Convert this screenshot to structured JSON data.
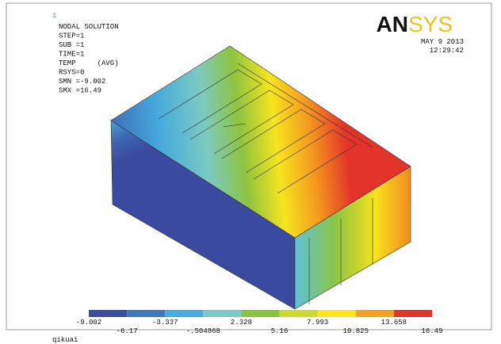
{
  "window_number": "1",
  "info": [
    "NODAL SOLUTION",
    "STEP=1",
    "SUB =1",
    "TIME=1",
    "TEMP     (AVG)",
    "RSYS=0",
    "SMN =-9.002",
    "SMX =16.49"
  ],
  "logo": {
    "left": "AN",
    "right": "SYS"
  },
  "date": "MAY  9 2013",
  "time": "12:29:42",
  "legend": {
    "colors": [
      "#3b4ba0",
      "#3c78be",
      "#44aee0",
      "#79cbc3",
      "#86c440",
      "#cbdb2a",
      "#fbe51c",
      "#f6a11d",
      "#e5322a"
    ],
    "labels": [
      "-9.002",
      "-6.17",
      "-3.337",
      "-.504868",
      "2.328",
      "5.16",
      "7.993",
      "10.825",
      "13.658",
      "16.49"
    ]
  },
  "footer": "qikuai"
}
